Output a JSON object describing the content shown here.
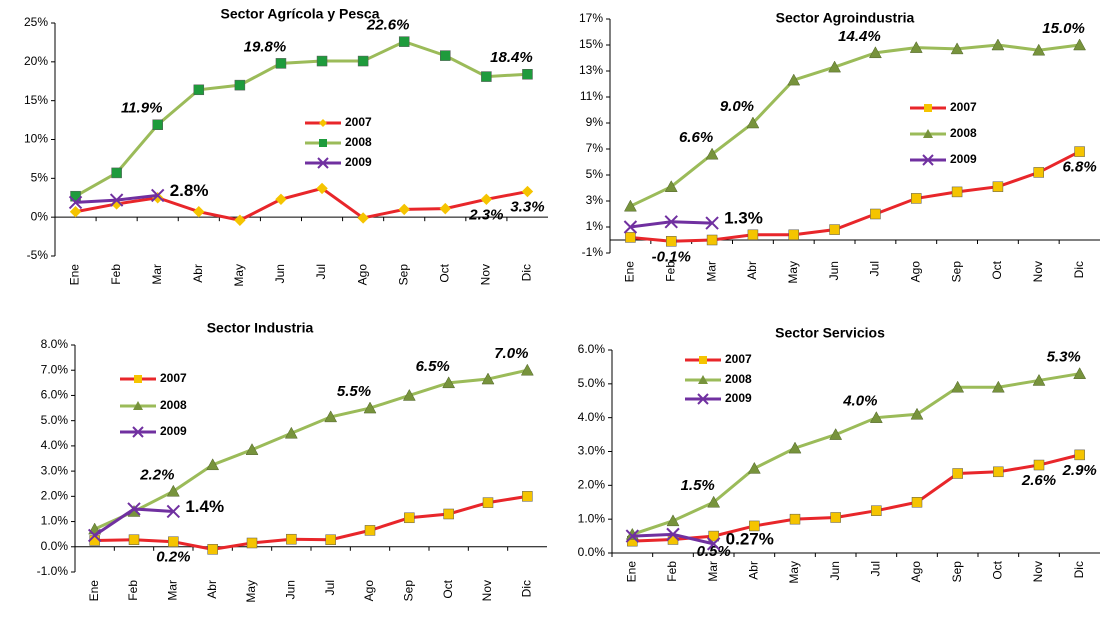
{
  "chart_data": [
    {
      "type": "line",
      "title": "Sector Agrícola y Pesca",
      "categories": [
        "Ene",
        "Feb",
        "Mar",
        "Abr",
        "May",
        "Jun",
        "Jul",
        "Ago",
        "Sep",
        "Oct",
        "Nov",
        "Dic"
      ],
      "ylim": [
        -5,
        25
      ],
      "yticks": [
        {
          "value": -5,
          "label": "-5%"
        },
        {
          "value": 0,
          "label": "0%"
        },
        {
          "value": 5,
          "label": "5%"
        },
        {
          "value": 10,
          "label": "10%"
        },
        {
          "value": 15,
          "label": "15%"
        },
        {
          "value": 20,
          "label": "20%"
        },
        {
          "value": 25,
          "label": "25%"
        }
      ],
      "series": [
        {
          "name": "2007",
          "color": "#e8262a",
          "marker": "diamond",
          "marker_color": "#f5c400",
          "values": [
            0.7,
            1.7,
            2.5,
            0.7,
            -0.4,
            2.3,
            3.7,
            -0.1,
            1.0,
            1.1,
            2.3,
            3.3
          ],
          "value_labels": [
            null,
            null,
            null,
            null,
            null,
            null,
            null,
            null,
            null,
            null,
            "2.3%",
            "3.3%"
          ]
        },
        {
          "name": "2008",
          "color": "#9bbb59",
          "marker": "square",
          "marker_color": "#1e9b3c",
          "values": [
            2.7,
            5.7,
            11.9,
            16.4,
            17.0,
            19.8,
            20.1,
            20.1,
            22.6,
            20.8,
            18.1,
            18.4
          ],
          "value_labels": [
            null,
            null,
            "11.9%",
            null,
            null,
            "19.8%",
            null,
            null,
            "22.6%",
            null,
            null,
            "18.4%"
          ]
        },
        {
          "name": "2009",
          "color": "#7030a0",
          "marker": "x",
          "marker_color": "#7030a0",
          "values": [
            1.9,
            2.2,
            2.8,
            null,
            null,
            null,
            null,
            null,
            null,
            null,
            null,
            null
          ],
          "value_labels": [
            null,
            null,
            "2.8%",
            null,
            null,
            null,
            null,
            null,
            null,
            null,
            null,
            null
          ]
        }
      ]
    },
    {
      "type": "line",
      "title": "Sector Agroindustria",
      "categories": [
        "Ene",
        "Feb",
        "Mar",
        "Abr",
        "May",
        "Jun",
        "Jul",
        "Ago",
        "Sep",
        "Oct",
        "Nov",
        "Dic"
      ],
      "ylim": [
        -1,
        17
      ],
      "yticks": [
        {
          "value": -1,
          "label": "-1%"
        },
        {
          "value": 1,
          "label": "1%"
        },
        {
          "value": 3,
          "label": "3%"
        },
        {
          "value": 5,
          "label": "5%"
        },
        {
          "value": 7,
          "label": "7%"
        },
        {
          "value": 9,
          "label": "9%"
        },
        {
          "value": 11,
          "label": "11%"
        },
        {
          "value": 13,
          "label": "13%"
        },
        {
          "value": 15,
          "label": "15%"
        },
        {
          "value": 17,
          "label": "17%"
        }
      ],
      "series": [
        {
          "name": "2007",
          "color": "#e8262a",
          "marker": "square",
          "marker_color": "#f5c400",
          "values": [
            0.2,
            -0.1,
            0.0,
            0.4,
            0.4,
            0.8,
            2.0,
            3.2,
            3.7,
            4.1,
            5.2,
            6.8
          ],
          "value_labels": [
            null,
            "-0.1%",
            null,
            null,
            null,
            null,
            null,
            null,
            null,
            null,
            null,
            "6.8%"
          ]
        },
        {
          "name": "2008",
          "color": "#9bbb59",
          "marker": "triangle",
          "marker_color": "#77933c",
          "values": [
            2.6,
            4.1,
            6.6,
            9.0,
            12.3,
            13.3,
            14.4,
            14.8,
            14.7,
            15.0,
            14.6,
            15.0
          ],
          "value_labels": [
            null,
            null,
            "6.6%",
            "9.0%",
            null,
            null,
            "14.4%",
            null,
            null,
            null,
            null,
            "15.0%"
          ]
        },
        {
          "name": "2009",
          "color": "#7030a0",
          "marker": "x",
          "marker_color": "#7030a0",
          "values": [
            1.0,
            1.4,
            1.3,
            null,
            null,
            null,
            null,
            null,
            null,
            null,
            null,
            null
          ],
          "value_labels": [
            null,
            null,
            "1.3%",
            null,
            null,
            null,
            null,
            null,
            null,
            null,
            null,
            null
          ]
        }
      ]
    },
    {
      "type": "line",
      "title": "Sector Industria",
      "categories": [
        "Ene",
        "Feb",
        "Mar",
        "Abr",
        "May",
        "Jun",
        "Jul",
        "Ago",
        "Sep",
        "Oct",
        "Nov",
        "Dic"
      ],
      "ylim": [
        -1,
        8
      ],
      "yticks": [
        {
          "value": -1,
          "label": "-1.0%"
        },
        {
          "value": 0,
          "label": "0.0%"
        },
        {
          "value": 1,
          "label": "1.0%"
        },
        {
          "value": 2,
          "label": "2.0%"
        },
        {
          "value": 3,
          "label": "3.0%"
        },
        {
          "value": 4,
          "label": "4.0%"
        },
        {
          "value": 5,
          "label": "5.0%"
        },
        {
          "value": 6,
          "label": "6.0%"
        },
        {
          "value": 7,
          "label": "7.0%"
        },
        {
          "value": 8,
          "label": "8.0%"
        }
      ],
      "series": [
        {
          "name": "2007",
          "color": "#e8262a",
          "marker": "square",
          "marker_color": "#f5c400",
          "values": [
            0.25,
            0.28,
            0.2,
            -0.1,
            0.15,
            0.3,
            0.28,
            0.65,
            1.15,
            1.3,
            1.75,
            2.0
          ],
          "value_labels": [
            null,
            null,
            "0.2%",
            null,
            null,
            null,
            null,
            null,
            null,
            null,
            null,
            null
          ]
        },
        {
          "name": "2008",
          "color": "#9bbb59",
          "marker": "triangle",
          "marker_color": "#77933c",
          "values": [
            0.7,
            1.4,
            2.2,
            3.25,
            3.85,
            4.5,
            5.15,
            5.5,
            6.0,
            6.5,
            6.65,
            7.0
          ],
          "value_labels": [
            null,
            null,
            "2.2%",
            null,
            null,
            null,
            null,
            "5.5%",
            null,
            "6.5%",
            null,
            "7.0%"
          ]
        },
        {
          "name": "2009",
          "color": "#7030a0",
          "marker": "x",
          "marker_color": "#7030a0",
          "values": [
            0.45,
            1.5,
            1.4,
            null,
            null,
            null,
            null,
            null,
            null,
            null,
            null,
            null
          ],
          "value_labels": [
            null,
            null,
            "1.4%",
            null,
            null,
            null,
            null,
            null,
            null,
            null,
            null,
            null
          ]
        }
      ]
    },
    {
      "type": "line",
      "title": "Sector Servicios",
      "categories": [
        "Ene",
        "Feb",
        "Mar",
        "Abr",
        "May",
        "Jun",
        "Jul",
        "Ago",
        "Sep",
        "Oct",
        "Nov",
        "Dic"
      ],
      "ylim": [
        0,
        6
      ],
      "yticks": [
        {
          "value": 0,
          "label": "0.0%"
        },
        {
          "value": 1,
          "label": "1.0%"
        },
        {
          "value": 2,
          "label": "2.0%"
        },
        {
          "value": 3,
          "label": "3.0%"
        },
        {
          "value": 4,
          "label": "4.0%"
        },
        {
          "value": 5,
          "label": "5.0%"
        },
        {
          "value": 6,
          "label": "6.0%"
        }
      ],
      "series": [
        {
          "name": "2007",
          "color": "#e8262a",
          "marker": "square",
          "marker_color": "#f5c400",
          "values": [
            0.35,
            0.4,
            0.5,
            0.8,
            1.0,
            1.05,
            1.25,
            1.5,
            2.35,
            2.4,
            2.6,
            2.9
          ],
          "value_labels": [
            null,
            null,
            "0.5%",
            null,
            null,
            null,
            null,
            null,
            null,
            null,
            "2.6%",
            "2.9%"
          ]
        },
        {
          "name": "2008",
          "color": "#9bbb59",
          "marker": "triangle",
          "marker_color": "#77933c",
          "values": [
            0.55,
            0.95,
            1.5,
            2.5,
            3.1,
            3.5,
            4.0,
            4.1,
            4.9,
            4.9,
            5.1,
            5.3
          ],
          "value_labels": [
            null,
            null,
            "1.5%",
            null,
            null,
            null,
            "4.0%",
            null,
            null,
            null,
            null,
            "5.3%"
          ]
        },
        {
          "name": "2009",
          "color": "#7030a0",
          "marker": "x",
          "marker_color": "#7030a0",
          "values": [
            0.5,
            0.55,
            0.27,
            null,
            null,
            null,
            null,
            null,
            null,
            null,
            null,
            null
          ],
          "value_labels": [
            null,
            null,
            "0.27%",
            null,
            null,
            null,
            null,
            null,
            null,
            null,
            null,
            null
          ]
        }
      ]
    }
  ]
}
